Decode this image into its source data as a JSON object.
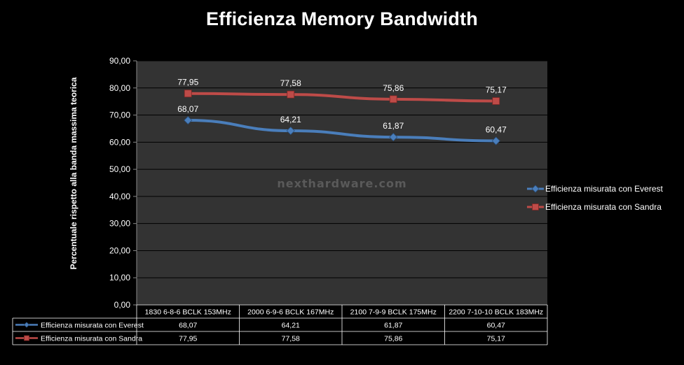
{
  "chart_data": {
    "type": "line",
    "title": "Efficienza Memory Bandwidth",
    "ylabel": "Percentuale rispetto alla banda massima teorica",
    "xlabel": "",
    "ylim": [
      0,
      90
    ],
    "yticks": [
      "0,00",
      "10,00",
      "20,00",
      "30,00",
      "40,00",
      "50,00",
      "60,00",
      "70,00",
      "80,00",
      "90,00"
    ],
    "categories": [
      "1830 6-8-6 BCLK 153MHz",
      "2000 6-9-6 BCLK 167MHz",
      "2100 7-9-9 BCLK 175MHz",
      "2200 7-10-10 BCLK 183MHz"
    ],
    "series": [
      {
        "name": "Efficienza misurata con Everest",
        "values": [
          68.07,
          64.21,
          61.87,
          60.47
        ],
        "labels": [
          "68,07",
          "64,21",
          "61,87",
          "60,47"
        ],
        "color": "#4a7ebb",
        "marker": "diamond"
      },
      {
        "name": "Efficienza misurata con Sandra",
        "values": [
          77.95,
          77.58,
          75.86,
          75.17
        ],
        "labels": [
          "77,95",
          "77,58",
          "75,86",
          "75,17"
        ],
        "color": "#be4b48",
        "marker": "square"
      }
    ],
    "grid": true,
    "legend": "right",
    "data_table": true,
    "plot_background": "#333333",
    "watermark": "nexthardware.com"
  }
}
